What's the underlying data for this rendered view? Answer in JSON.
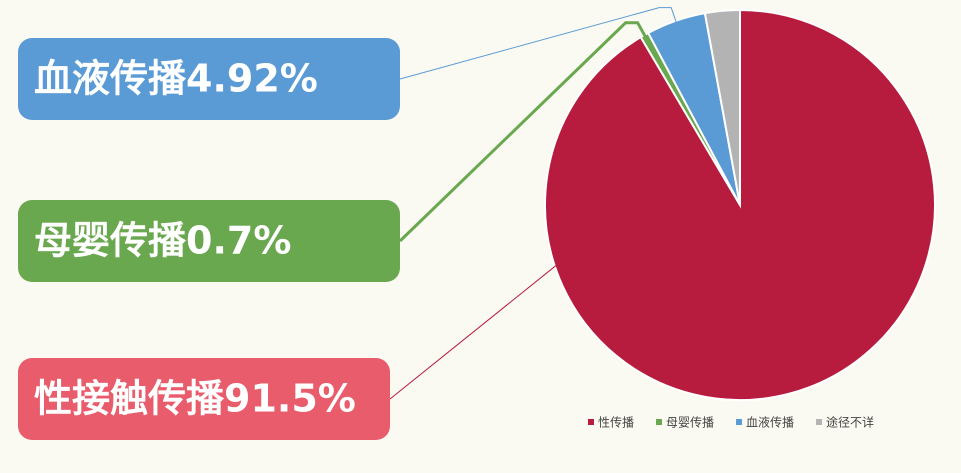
{
  "chart_data": {
    "type": "pie",
    "categories": [
      "性传播",
      "母婴传播",
      "血液传播",
      "途径不详"
    ],
    "values": [
      91.5,
      0.7,
      4.92,
      2.88
    ],
    "value_labels": [
      "性接触传播91.5%",
      "母婴传播0.7%",
      "血液传播4.92%",
      null
    ],
    "colors": [
      "#b71c3e",
      "#6aa84f",
      "#5b9bd5",
      "#b3b3b3"
    ],
    "label_colors": [
      "#e85c6c",
      "#6aa84f",
      "#5b9bd5",
      null
    ],
    "legend": "bottom-right"
  }
}
